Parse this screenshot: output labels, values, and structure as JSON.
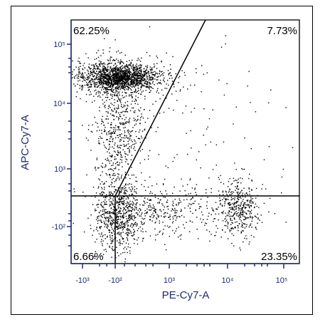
{
  "chart_data": {
    "type": "scatter",
    "xlabel": "PE-Cy7-A",
    "ylabel": "APC-Cy7-A",
    "x_scale": "biexponential",
    "y_scale": "biexponential",
    "x_tick_labels": [
      "-10³",
      "-10²",
      "10³",
      "10⁴",
      "10⁵"
    ],
    "y_tick_labels": [
      "10⁵",
      "10⁴",
      "10³",
      "-10²"
    ],
    "quadrant_percentages": {
      "upper_left": "62.25%",
      "upper_right": "7.73%",
      "lower_left": "6.66%",
      "lower_right": "23.35%"
    },
    "populations": [
      {
        "description": "upper-left dense cluster",
        "x_center": -100,
        "y_center": 25000
      },
      {
        "description": "lower-left cluster near origin",
        "x_center": -100,
        "y_center": -100
      },
      {
        "description": "lower-right cluster",
        "x_center": 20000,
        "y_center": 300
      }
    ],
    "gate_vertical_x": -100,
    "gate_horizontal_y": 400,
    "gate_diagonal_from": [
      -100,
      400
    ],
    "gate_diagonal_to": [
      3000,
      200000
    ],
    "grid": false,
    "legend": "none"
  },
  "colors": {
    "axis_text": "#1e2a6e",
    "points": "#000000",
    "gates": "#000000"
  }
}
